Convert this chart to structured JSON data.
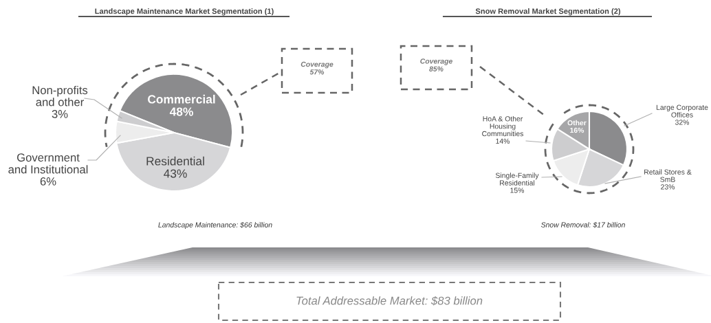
{
  "chart_data": [
    {
      "type": "pie",
      "title": "Landscape Maintenance Market Segmentation (1)",
      "categories": [
        "Commercial",
        "Residential",
        "Government\nand Institutional",
        "Non-profits\nand other"
      ],
      "values": [
        48,
        43,
        6,
        3
      ],
      "value_labels": [
        "48%",
        "43%",
        "6%",
        "3%"
      ],
      "colors": [
        "#8b8b8d",
        "#d6d6d8",
        "#ededed",
        "#cdcdcf"
      ],
      "annotations": [
        "Coverage\n57%",
        "Landscape Maintenance: $66 billion"
      ]
    },
    {
      "type": "pie",
      "title": "Snow Removal Market Segmentation (2)",
      "categories": [
        "Large Corporate\nOffices",
        "Retail Stores &\nSmB",
        "Single-Family\nResidential",
        "HoA & Other\nHousing\nCommunities",
        "Other"
      ],
      "values": [
        32,
        23,
        15,
        14,
        16
      ],
      "value_labels": [
        "32%",
        "23%",
        "15%",
        "14%",
        "16%"
      ],
      "colors": [
        "#8b8b8d",
        "#d6d6d8",
        "#ededed",
        "#cdcdcf",
        "#a6a6a8"
      ],
      "annotations": [
        "Coverage\n85%",
        "Snow Removal: $17 billion"
      ]
    },
    {
      "type": "other",
      "annotations": [
        "Total Addressable Market: $83 billion"
      ]
    }
  ]
}
